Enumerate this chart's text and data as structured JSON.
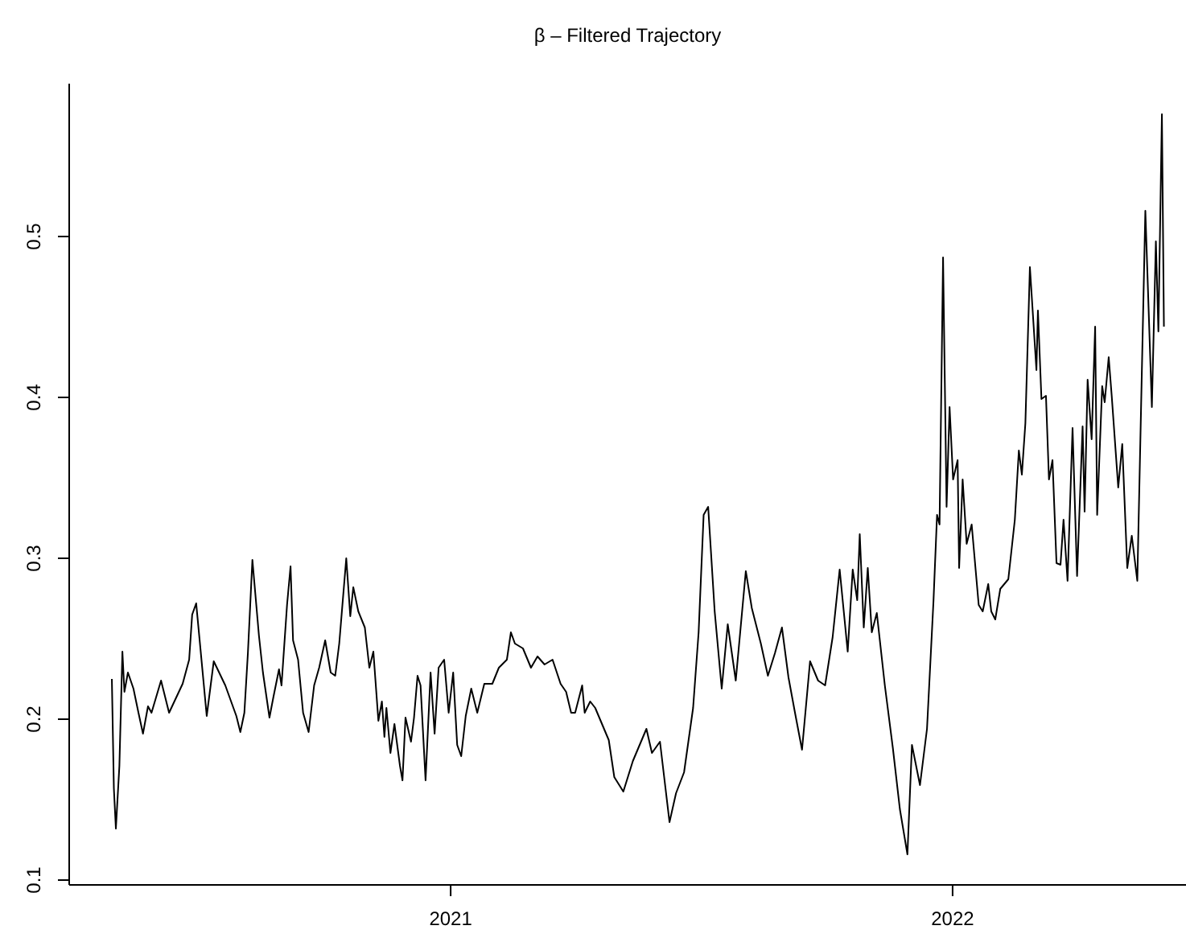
{
  "chart_data": {
    "type": "line",
    "title": "β – Filtered Trajectory",
    "xlim": [
      2020.24,
      2022.465
    ],
    "xticks": [
      2021,
      2022
    ],
    "ylim": [
      0.097,
      0.595
    ],
    "yticks": [
      0.1,
      0.2,
      0.3,
      0.4,
      0.5
    ],
    "grid": false,
    "series": [
      {
        "color": "#000000",
        "x": [
          2020.325,
          2020.329,
          2020.333,
          2020.34,
          2020.346,
          2020.35,
          2020.357,
          2020.368,
          2020.378,
          2020.387,
          2020.397,
          2020.404,
          2020.423,
          2020.439,
          2020.466,
          2020.479,
          2020.485,
          2020.493,
          2020.514,
          2020.528,
          2020.551,
          2020.573,
          2020.581,
          2020.589,
          2020.596,
          2020.605,
          2020.618,
          2020.626,
          2020.639,
          2020.647,
          2020.658,
          2020.663,
          2020.674,
          2020.681,
          2020.686,
          2020.696,
          2020.706,
          2020.717,
          2020.728,
          2020.738,
          2020.75,
          2020.761,
          2020.77,
          2020.778,
          2020.792,
          2020.8,
          2020.806,
          2020.816,
          2020.829,
          2020.838,
          2020.846,
          2020.856,
          2020.863,
          2020.868,
          2020.872,
          2020.88,
          2020.888,
          2020.899,
          2020.904,
          2020.91,
          2020.921,
          2020.927,
          2020.934,
          2020.94,
          2020.95,
          2020.96,
          2020.968,
          2020.976,
          2020.987,
          2020.996,
          2021.005,
          2021.013,
          2021.021,
          2021.03,
          2021.041,
          2021.053,
          2021.067,
          2021.083,
          2021.096,
          2021.112,
          2021.12,
          2021.128,
          2021.144,
          2021.16,
          2021.173,
          2021.187,
          2021.203,
          2021.219,
          2021.23,
          2021.24,
          2021.248,
          2021.262,
          2021.267,
          2021.278,
          2021.288,
          2021.315,
          2021.326,
          2021.344,
          2021.363,
          2021.39,
          2021.401,
          2021.417,
          2021.436,
          2021.449,
          2021.465,
          2021.483,
          2021.494,
          2021.504,
          2021.513,
          2021.526,
          2021.54,
          2021.552,
          2021.568,
          2021.588,
          2021.6,
          2021.618,
          2021.632,
          2021.646,
          2021.66,
          2021.673,
          2021.686,
          2021.7,
          2021.716,
          2021.732,
          2021.746,
          2021.761,
          2021.775,
          2021.791,
          2021.801,
          2021.81,
          2021.815,
          2021.823,
          2021.831,
          2021.839,
          2021.849,
          2021.865,
          2021.881,
          2021.895,
          2021.91,
          2021.919,
          2021.935,
          2021.949,
          2021.962,
          2021.969,
          2021.974,
          2021.981,
          2021.988,
          2021.994,
          2022.001,
          2022.01,
          2022.013,
          2022.02,
          2022.028,
          2022.038,
          2022.052,
          2022.06,
          2022.071,
          2022.077,
          2022.085,
          2022.095,
          2022.111,
          2022.124,
          2022.132,
          2022.138,
          2022.145,
          2022.154,
          2022.167,
          2022.17,
          2022.177,
          2022.186,
          2022.192,
          2022.199,
          2022.207,
          2022.215,
          2022.221,
          2022.229,
          2022.239,
          2022.248,
          2022.259,
          2022.263,
          2022.269,
          2022.277,
          2022.284,
          2022.288,
          2022.298,
          2022.303,
          2022.311,
          2022.317,
          2022.33,
          2022.338,
          2022.348,
          2022.357,
          2022.368,
          2022.384,
          2022.397,
          2022.405,
          2022.41,
          2022.417,
          2022.421
        ],
        "values": [
          0.225,
          0.157,
          0.132,
          0.171,
          0.242,
          0.217,
          0.229,
          0.219,
          0.204,
          0.191,
          0.208,
          0.204,
          0.224,
          0.204,
          0.222,
          0.237,
          0.265,
          0.272,
          0.202,
          0.236,
          0.221,
          0.202,
          0.192,
          0.204,
          0.241,
          0.299,
          0.252,
          0.229,
          0.201,
          0.214,
          0.231,
          0.221,
          0.271,
          0.295,
          0.249,
          0.237,
          0.204,
          0.192,
          0.221,
          0.232,
          0.249,
          0.229,
          0.227,
          0.247,
          0.3,
          0.264,
          0.282,
          0.267,
          0.257,
          0.232,
          0.242,
          0.199,
          0.211,
          0.189,
          0.207,
          0.179,
          0.197,
          0.171,
          0.162,
          0.201,
          0.186,
          0.201,
          0.227,
          0.221,
          0.162,
          0.229,
          0.191,
          0.232,
          0.237,
          0.204,
          0.229,
          0.184,
          0.177,
          0.202,
          0.219,
          0.204,
          0.222,
          0.222,
          0.232,
          0.237,
          0.254,
          0.247,
          0.244,
          0.232,
          0.239,
          0.234,
          0.237,
          0.222,
          0.217,
          0.204,
          0.204,
          0.221,
          0.204,
          0.211,
          0.207,
          0.187,
          0.164,
          0.155,
          0.174,
          0.194,
          0.179,
          0.186,
          0.136,
          0.154,
          0.167,
          0.207,
          0.254,
          0.327,
          0.332,
          0.267,
          0.219,
          0.259,
          0.224,
          0.292,
          0.269,
          0.247,
          0.227,
          0.241,
          0.257,
          0.226,
          0.204,
          0.181,
          0.236,
          0.224,
          0.221,
          0.251,
          0.293,
          0.242,
          0.293,
          0.274,
          0.315,
          0.257,
          0.294,
          0.254,
          0.266,
          0.221,
          0.182,
          0.144,
          0.116,
          0.184,
          0.159,
          0.194,
          0.274,
          0.327,
          0.321,
          0.487,
          0.332,
          0.394,
          0.349,
          0.361,
          0.294,
          0.349,
          0.309,
          0.321,
          0.271,
          0.267,
          0.284,
          0.267,
          0.262,
          0.281,
          0.287,
          0.324,
          0.367,
          0.352,
          0.384,
          0.481,
          0.417,
          0.454,
          0.399,
          0.401,
          0.349,
          0.361,
          0.297,
          0.296,
          0.324,
          0.286,
          0.381,
          0.289,
          0.382,
          0.329,
          0.411,
          0.374,
          0.444,
          0.327,
          0.407,
          0.397,
          0.425,
          0.401,
          0.344,
          0.371,
          0.294,
          0.314,
          0.286,
          0.516,
          0.394,
          0.497,
          0.441,
          0.576,
          0.444
        ]
      }
    ]
  }
}
